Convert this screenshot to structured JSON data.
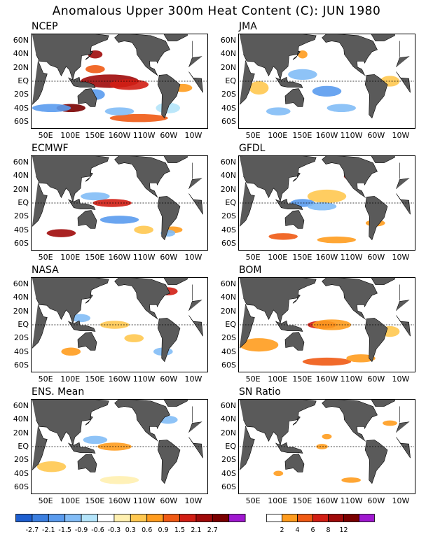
{
  "title": "Anomalous Upper 300m Heat Content (C): JUN 1980",
  "panels": [
    {
      "name": "NCEP"
    },
    {
      "name": "JMA"
    },
    {
      "name": "ECMWF"
    },
    {
      "name": "GFDL"
    },
    {
      "name": "NASA"
    },
    {
      "name": "BOM"
    },
    {
      "name": "ENS. Mean"
    },
    {
      "name": "SN Ratio"
    }
  ],
  "lat_labels": [
    "60N",
    "40N",
    "20N",
    "EQ",
    "20S",
    "40S",
    "60S"
  ],
  "lon_labels": [
    "50E",
    "100E",
    "150E",
    "160W",
    "110W",
    "60W",
    "10W"
  ],
  "colorbar_anomaly": {
    "colors": [
      "#1e5fd0",
      "#3c7fe0",
      "#5a9bee",
      "#82bcf6",
      "#b4e4fa",
      "#ffffff",
      "#fff0b0",
      "#ffc850",
      "#ff9c1e",
      "#f05a14",
      "#d21e14",
      "#a00a0a",
      "#7a0000",
      "#a018d0"
    ],
    "ticks": [
      "-2.7",
      "-2.1",
      "-1.5",
      "-0.9",
      "-0.6",
      "-0.3",
      "0.3",
      "0.6",
      "0.9",
      "1.5",
      "2.1",
      "2.7"
    ]
  },
  "colorbar_sn": {
    "colors": [
      "#ffffff",
      "#ff9c1e",
      "#f05a14",
      "#d21e14",
      "#a00a0a",
      "#7a0000",
      "#a018d0"
    ],
    "ticks": [
      "2",
      "4",
      "6",
      "8",
      "12"
    ]
  },
  "land_color": "#5a5a5a"
}
